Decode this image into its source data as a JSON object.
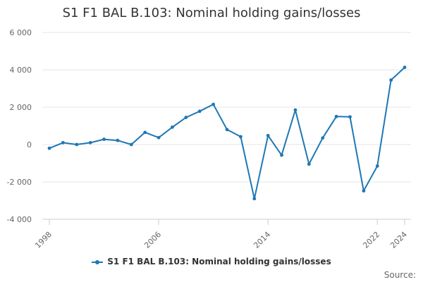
{
  "chart_data": {
    "type": "line",
    "title": "S1 F1 BAL B.103: Nominal holding gains/losses",
    "xlabel": "",
    "ylabel": "",
    "x": [
      1998,
      1999,
      2000,
      2001,
      2002,
      2003,
      2004,
      2005,
      2006,
      2007,
      2008,
      2009,
      2010,
      2011,
      2012,
      2013,
      2014,
      2015,
      2016,
      2017,
      2018,
      2019,
      2020,
      2021,
      2022,
      2023,
      2024
    ],
    "xlim": [
      1998,
      2024
    ],
    "ylim": [
      -4000,
      6000
    ],
    "x_ticks": [
      "1998",
      "2006",
      "2014",
      "2022",
      "2024"
    ],
    "x_tick_values": [
      1998,
      2006,
      2014,
      2022,
      2024
    ],
    "y_ticks": [
      "6 000",
      "4 000",
      "2 000",
      "0",
      "-2 000",
      "-4 000"
    ],
    "y_tick_values": [
      6000,
      4000,
      2000,
      0,
      -2000,
      -4000
    ],
    "grid": "horizontal",
    "legend_position": "bottom",
    "series": [
      {
        "name": "S1 F1 BAL B.103: Nominal holding gains/losses",
        "color": "#1f77b4",
        "values": [
          -200,
          100,
          0,
          100,
          280,
          220,
          0,
          650,
          370,
          930,
          1450,
          1780,
          2150,
          800,
          420,
          -2900,
          480,
          -570,
          1850,
          -1050,
          350,
          1500,
          1480,
          -2480,
          -1150,
          3450,
          4130
        ]
      }
    ]
  },
  "source_label": "Source:"
}
